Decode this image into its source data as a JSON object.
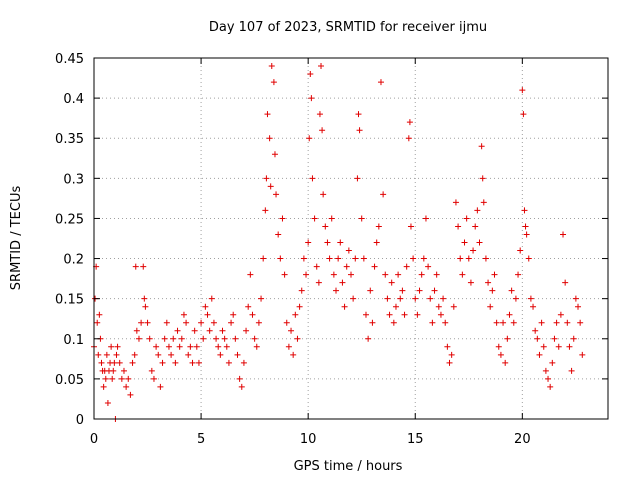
{
  "chart_data": {
    "type": "scatter",
    "title": "Day 107 of 2023, SRMTID for receiver ijmu",
    "xlabel": "GPS time / hours",
    "ylabel": "SRMTID / TECUs",
    "xlim": [
      0,
      24
    ],
    "ylim": [
      0,
      0.45
    ],
    "xticks": [
      0,
      5,
      10,
      15,
      20
    ],
    "xtick_labels": [
      "0",
      "5",
      "10",
      "15",
      "20"
    ],
    "yticks": [
      0,
      0.05,
      0.1,
      0.15,
      0.2,
      0.25,
      0.3,
      0.35,
      0.4,
      0.45
    ],
    "ytick_labels": [
      "0",
      "0.05",
      "0.1",
      "0.15",
      "0.2",
      "0.25",
      "0.3",
      "0.35",
      "0.4",
      "0.45"
    ],
    "grid": true,
    "marker": "plus",
    "color": "#e00000",
    "points_approx": [
      [
        0.0,
        0.09
      ],
      [
        0.05,
        0.15
      ],
      [
        0.1,
        0.19
      ],
      [
        0.15,
        0.12
      ],
      [
        0.2,
        0.08
      ],
      [
        0.25,
        0.13
      ],
      [
        0.3,
        0.1
      ],
      [
        0.35,
        0.07
      ],
      [
        0.4,
        0.06
      ],
      [
        0.45,
        0.04
      ],
      [
        0.5,
        0.06
      ],
      [
        0.55,
        0.05
      ],
      [
        0.6,
        0.08
      ],
      [
        0.65,
        0.02
      ],
      [
        0.7,
        0.06
      ],
      [
        0.75,
        0.07
      ],
      [
        0.8,
        0.09
      ],
      [
        0.85,
        0.05
      ],
      [
        0.9,
        0.06
      ],
      [
        0.95,
        0.07
      ],
      [
        1.0,
        0.0
      ],
      [
        1.05,
        0.08
      ],
      [
        1.1,
        0.09
      ],
      [
        1.2,
        0.07
      ],
      [
        1.3,
        0.05
      ],
      [
        1.4,
        0.06
      ],
      [
        1.5,
        0.04
      ],
      [
        1.6,
        0.05
      ],
      [
        1.7,
        0.03
      ],
      [
        1.8,
        0.07
      ],
      [
        1.9,
        0.08
      ],
      [
        1.95,
        0.19
      ],
      [
        2.0,
        0.11
      ],
      [
        2.1,
        0.1
      ],
      [
        2.2,
        0.12
      ],
      [
        2.3,
        0.19
      ],
      [
        2.35,
        0.15
      ],
      [
        2.4,
        0.14
      ],
      [
        2.5,
        0.12
      ],
      [
        2.6,
        0.1
      ],
      [
        2.7,
        0.06
      ],
      [
        2.8,
        0.05
      ],
      [
        2.9,
        0.09
      ],
      [
        3.0,
        0.08
      ],
      [
        3.1,
        0.04
      ],
      [
        3.2,
        0.07
      ],
      [
        3.3,
        0.1
      ],
      [
        3.4,
        0.12
      ],
      [
        3.5,
        0.09
      ],
      [
        3.6,
        0.08
      ],
      [
        3.7,
        0.1
      ],
      [
        3.8,
        0.07
      ],
      [
        3.9,
        0.11
      ],
      [
        4.0,
        0.09
      ],
      [
        4.1,
        0.1
      ],
      [
        4.2,
        0.13
      ],
      [
        4.3,
        0.12
      ],
      [
        4.4,
        0.08
      ],
      [
        4.5,
        0.09
      ],
      [
        4.6,
        0.07
      ],
      [
        4.7,
        0.11
      ],
      [
        4.8,
        0.09
      ],
      [
        4.9,
        0.07
      ],
      [
        5.0,
        0.12
      ],
      [
        5.1,
        0.1
      ],
      [
        5.2,
        0.14
      ],
      [
        5.3,
        0.13
      ],
      [
        5.4,
        0.11
      ],
      [
        5.5,
        0.15
      ],
      [
        5.6,
        0.12
      ],
      [
        5.7,
        0.1
      ],
      [
        5.8,
        0.09
      ],
      [
        5.9,
        0.08
      ],
      [
        6.0,
        0.11
      ],
      [
        6.1,
        0.1
      ],
      [
        6.2,
        0.09
      ],
      [
        6.3,
        0.07
      ],
      [
        6.4,
        0.12
      ],
      [
        6.5,
        0.13
      ],
      [
        6.6,
        0.1
      ],
      [
        6.7,
        0.08
      ],
      [
        6.8,
        0.05
      ],
      [
        6.9,
        0.04
      ],
      [
        7.0,
        0.07
      ],
      [
        7.1,
        0.11
      ],
      [
        7.2,
        0.14
      ],
      [
        7.3,
        0.18
      ],
      [
        7.4,
        0.13
      ],
      [
        7.5,
        0.1
      ],
      [
        7.6,
        0.09
      ],
      [
        7.7,
        0.12
      ],
      [
        7.8,
        0.15
      ],
      [
        7.9,
        0.2
      ],
      [
        8.0,
        0.26
      ],
      [
        8.05,
        0.3
      ],
      [
        8.1,
        0.38
      ],
      [
        8.2,
        0.35
      ],
      [
        8.25,
        0.29
      ],
      [
        8.3,
        0.44
      ],
      [
        8.4,
        0.42
      ],
      [
        8.45,
        0.33
      ],
      [
        8.5,
        0.28
      ],
      [
        8.6,
        0.23
      ],
      [
        8.7,
        0.2
      ],
      [
        8.8,
        0.25
      ],
      [
        8.9,
        0.18
      ],
      [
        9.0,
        0.12
      ],
      [
        9.1,
        0.09
      ],
      [
        9.2,
        0.11
      ],
      [
        9.3,
        0.08
      ],
      [
        9.4,
        0.13
      ],
      [
        9.5,
        0.1
      ],
      [
        9.6,
        0.14
      ],
      [
        9.7,
        0.16
      ],
      [
        9.8,
        0.2
      ],
      [
        9.9,
        0.18
      ],
      [
        10.0,
        0.22
      ],
      [
        10.05,
        0.35
      ],
      [
        10.1,
        0.43
      ],
      [
        10.15,
        0.4
      ],
      [
        10.2,
        0.3
      ],
      [
        10.3,
        0.25
      ],
      [
        10.4,
        0.19
      ],
      [
        10.5,
        0.17
      ],
      [
        10.55,
        0.38
      ],
      [
        10.6,
        0.44
      ],
      [
        10.65,
        0.36
      ],
      [
        10.7,
        0.28
      ],
      [
        10.8,
        0.24
      ],
      [
        10.9,
        0.22
      ],
      [
        11.0,
        0.2
      ],
      [
        11.1,
        0.25
      ],
      [
        11.2,
        0.18
      ],
      [
        11.3,
        0.16
      ],
      [
        11.4,
        0.2
      ],
      [
        11.5,
        0.22
      ],
      [
        11.6,
        0.17
      ],
      [
        11.7,
        0.14
      ],
      [
        11.8,
        0.19
      ],
      [
        11.9,
        0.21
      ],
      [
        12.0,
        0.18
      ],
      [
        12.1,
        0.15
      ],
      [
        12.2,
        0.2
      ],
      [
        12.3,
        0.3
      ],
      [
        12.35,
        0.38
      ],
      [
        12.4,
        0.36
      ],
      [
        12.5,
        0.25
      ],
      [
        12.6,
        0.2
      ],
      [
        12.7,
        0.13
      ],
      [
        12.8,
        0.1
      ],
      [
        12.9,
        0.16
      ],
      [
        13.0,
        0.12
      ],
      [
        13.1,
        0.19
      ],
      [
        13.2,
        0.22
      ],
      [
        13.3,
        0.24
      ],
      [
        13.4,
        0.42
      ],
      [
        13.5,
        0.28
      ],
      [
        13.6,
        0.18
      ],
      [
        13.7,
        0.15
      ],
      [
        13.8,
        0.13
      ],
      [
        13.9,
        0.17
      ],
      [
        14.0,
        0.12
      ],
      [
        14.1,
        0.14
      ],
      [
        14.2,
        0.18
      ],
      [
        14.3,
        0.15
      ],
      [
        14.4,
        0.16
      ],
      [
        14.5,
        0.13
      ],
      [
        14.6,
        0.19
      ],
      [
        14.7,
        0.35
      ],
      [
        14.75,
        0.37
      ],
      [
        14.8,
        0.24
      ],
      [
        14.9,
        0.2
      ],
      [
        15.0,
        0.15
      ],
      [
        15.1,
        0.13
      ],
      [
        15.2,
        0.16
      ],
      [
        15.3,
        0.18
      ],
      [
        15.4,
        0.2
      ],
      [
        15.5,
        0.25
      ],
      [
        15.6,
        0.19
      ],
      [
        15.7,
        0.15
      ],
      [
        15.8,
        0.12
      ],
      [
        15.9,
        0.16
      ],
      [
        16.0,
        0.18
      ],
      [
        16.1,
        0.14
      ],
      [
        16.2,
        0.13
      ],
      [
        16.3,
        0.15
      ],
      [
        16.4,
        0.12
      ],
      [
        16.5,
        0.09
      ],
      [
        16.6,
        0.07
      ],
      [
        16.7,
        0.08
      ],
      [
        16.8,
        0.14
      ],
      [
        16.9,
        0.27
      ],
      [
        17.0,
        0.24
      ],
      [
        17.1,
        0.2
      ],
      [
        17.2,
        0.18
      ],
      [
        17.3,
        0.22
      ],
      [
        17.4,
        0.25
      ],
      [
        17.5,
        0.2
      ],
      [
        17.6,
        0.17
      ],
      [
        17.7,
        0.21
      ],
      [
        17.8,
        0.24
      ],
      [
        17.9,
        0.26
      ],
      [
        18.0,
        0.22
      ],
      [
        18.1,
        0.34
      ],
      [
        18.15,
        0.3
      ],
      [
        18.2,
        0.27
      ],
      [
        18.3,
        0.2
      ],
      [
        18.4,
        0.17
      ],
      [
        18.5,
        0.14
      ],
      [
        18.6,
        0.16
      ],
      [
        18.7,
        0.18
      ],
      [
        18.8,
        0.12
      ],
      [
        18.9,
        0.09
      ],
      [
        19.0,
        0.08
      ],
      [
        19.1,
        0.12
      ],
      [
        19.2,
        0.07
      ],
      [
        19.3,
        0.1
      ],
      [
        19.4,
        0.13
      ],
      [
        19.5,
        0.16
      ],
      [
        19.6,
        0.12
      ],
      [
        19.7,
        0.15
      ],
      [
        19.8,
        0.18
      ],
      [
        19.9,
        0.21
      ],
      [
        20.0,
        0.41
      ],
      [
        20.05,
        0.38
      ],
      [
        20.1,
        0.26
      ],
      [
        20.15,
        0.24
      ],
      [
        20.2,
        0.23
      ],
      [
        20.3,
        0.2
      ],
      [
        20.4,
        0.15
      ],
      [
        20.5,
        0.14
      ],
      [
        20.6,
        0.11
      ],
      [
        20.7,
        0.1
      ],
      [
        20.8,
        0.08
      ],
      [
        20.9,
        0.12
      ],
      [
        21.0,
        0.09
      ],
      [
        21.1,
        0.06
      ],
      [
        21.2,
        0.05
      ],
      [
        21.3,
        0.04
      ],
      [
        21.4,
        0.07
      ],
      [
        21.5,
        0.1
      ],
      [
        21.6,
        0.12
      ],
      [
        21.7,
        0.09
      ],
      [
        21.8,
        0.13
      ],
      [
        21.9,
        0.23
      ],
      [
        22.0,
        0.17
      ],
      [
        22.1,
        0.12
      ],
      [
        22.2,
        0.09
      ],
      [
        22.3,
        0.06
      ],
      [
        22.4,
        0.1
      ],
      [
        22.5,
        0.15
      ],
      [
        22.6,
        0.14
      ],
      [
        22.7,
        0.12
      ],
      [
        22.8,
        0.08
      ]
    ]
  }
}
